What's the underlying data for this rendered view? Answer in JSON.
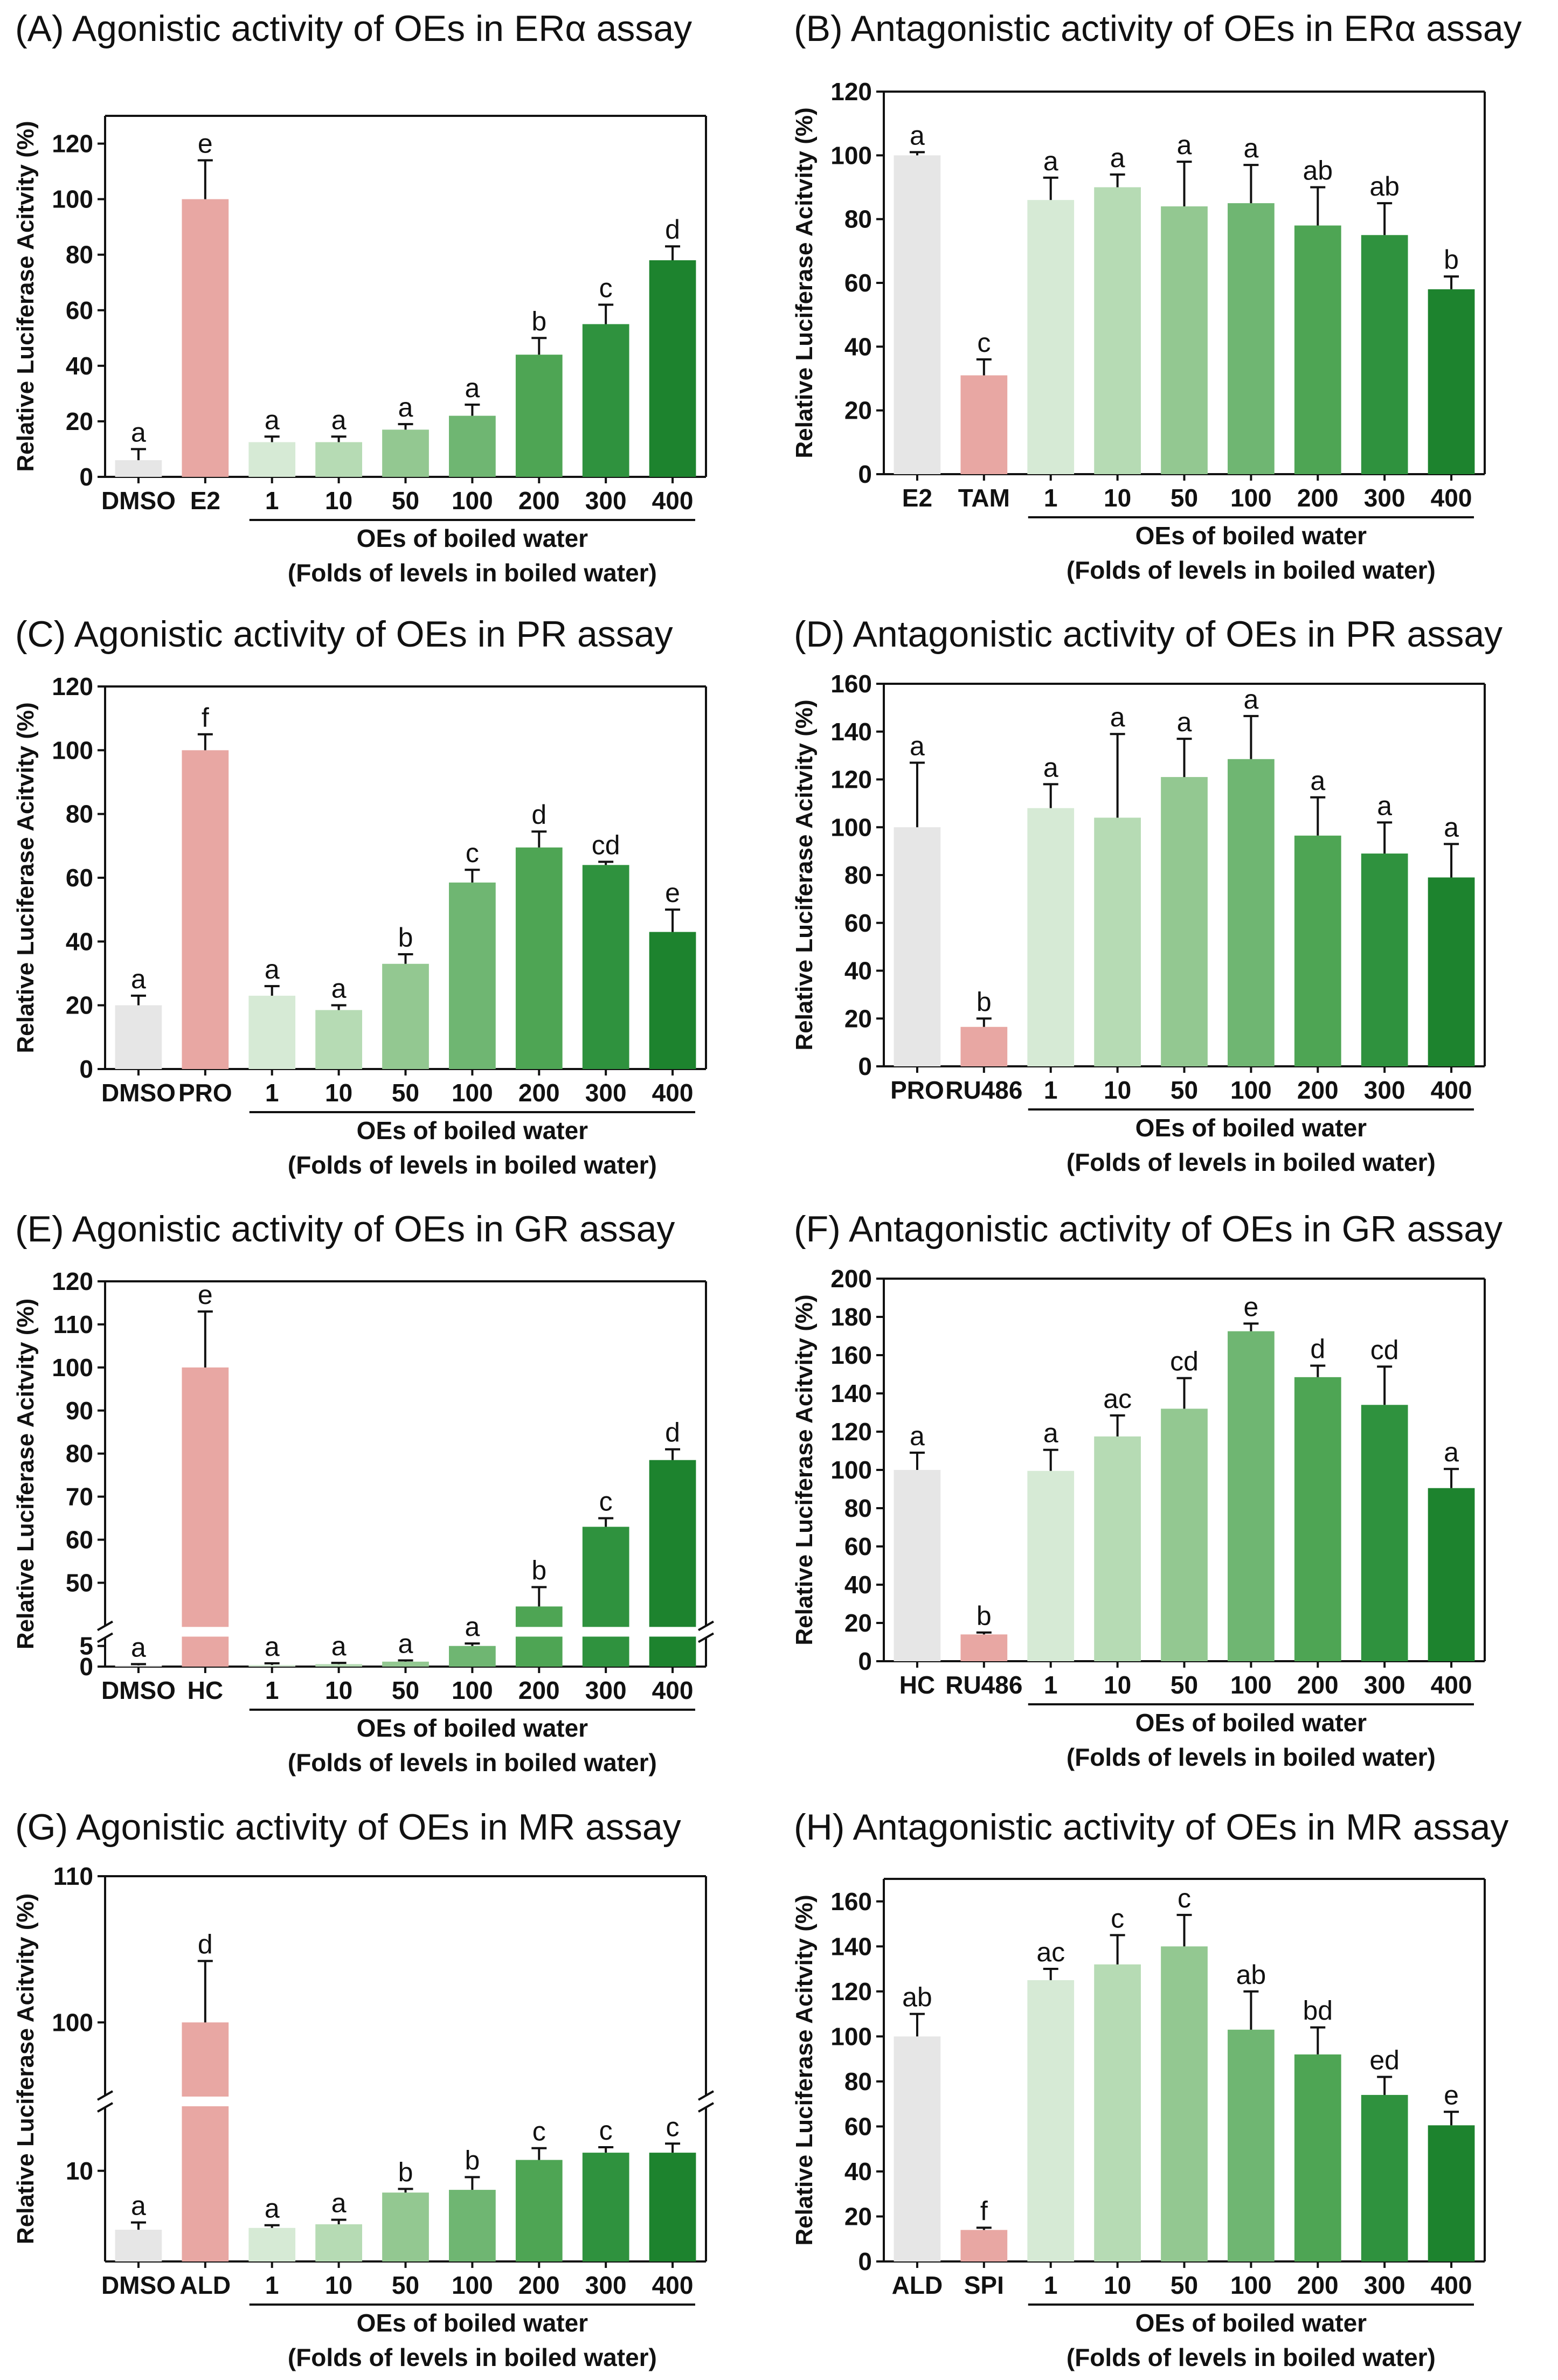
{
  "chart_data": [
    {
      "id": "A",
      "type": "bar",
      "title": "(A) Agonistic activity of OEs in ERα assay",
      "ylabel": "Relative Luciferase Acitvity (%)",
      "ylim": [
        0,
        130
      ],
      "yticks": [
        0,
        20,
        40,
        60,
        80,
        100,
        120
      ],
      "categories": [
        "DMSO",
        "E2",
        "1",
        "10",
        "50",
        "100",
        "200",
        "300",
        "400"
      ],
      "values": [
        6,
        100,
        12.5,
        12.5,
        17,
        22,
        44,
        55,
        78
      ],
      "errors": [
        4,
        14,
        2,
        2,
        2,
        4,
        6,
        7,
        5
      ],
      "letters": [
        "a",
        "e",
        "a",
        "a",
        "a",
        "a",
        "b",
        "c",
        "d"
      ],
      "colors": [
        "#e6e6e6",
        "#e8a7a3",
        "#d6ead5",
        "#b6dbb4",
        "#93c891",
        "#6fb672",
        "#4ea554",
        "#2f923e",
        "#1d832e"
      ],
      "group_label": "OEs of boiled water",
      "group_sublabel": "(Folds of levels in boiled water)"
    },
    {
      "id": "B",
      "type": "bar",
      "title": "(B) Antagonistic activity of OEs in ERα assay",
      "ylabel": "Relative Luciferase Acitvity (%)",
      "ylim": [
        0,
        120
      ],
      "yticks": [
        0,
        20,
        40,
        60,
        80,
        100,
        120
      ],
      "categories": [
        "E2",
        "TAM",
        "1",
        "10",
        "50",
        "100",
        "200",
        "300",
        "400"
      ],
      "values": [
        100,
        31,
        86,
        90,
        84,
        85,
        78,
        75,
        58
      ],
      "errors": [
        1,
        5,
        7,
        4,
        14,
        12,
        12,
        10,
        4
      ],
      "letters": [
        "a",
        "c",
        "a",
        "a",
        "a",
        "a",
        "ab",
        "ab",
        "b"
      ],
      "colors": [
        "#e6e6e6",
        "#e8a7a3",
        "#d6ead5",
        "#b6dbb4",
        "#93c891",
        "#6fb672",
        "#4ea554",
        "#2f923e",
        "#1d832e"
      ],
      "group_label": "OEs of boiled water",
      "group_sublabel": "(Folds of levels in boiled water)"
    },
    {
      "id": "C",
      "type": "bar",
      "title": "(C) Agonistic activity of OEs in PR assay",
      "ylabel": "Relative Luciferase Acitvity (%)",
      "ylim": [
        0,
        120
      ],
      "yticks": [
        0,
        20,
        40,
        60,
        80,
        100,
        120
      ],
      "categories": [
        "DMSO",
        "PRO",
        "1",
        "10",
        "50",
        "100",
        "200",
        "300",
        "400"
      ],
      "values": [
        20,
        100,
        23,
        18.5,
        33,
        58.5,
        69.5,
        64,
        43
      ],
      "errors": [
        3,
        5,
        3,
        1.5,
        3,
        4,
        5,
        1,
        7
      ],
      "letters": [
        "a",
        "f",
        "a",
        "a",
        "b",
        "c",
        "d",
        "cd",
        "e"
      ],
      "colors": [
        "#e6e6e6",
        "#e8a7a3",
        "#d6ead5",
        "#b6dbb4",
        "#93c891",
        "#6fb672",
        "#4ea554",
        "#2f923e",
        "#1d832e"
      ],
      "group_label": "OEs of boiled water",
      "group_sublabel": "(Folds of levels in boiled water)"
    },
    {
      "id": "D",
      "type": "bar",
      "title": "(D) Antagonistic activity of OEs in PR assay",
      "ylabel": "Relative Luciferase Acitvity (%)",
      "ylim": [
        0,
        160
      ],
      "yticks": [
        0,
        20,
        40,
        60,
        80,
        100,
        120,
        140,
        160
      ],
      "categories": [
        "PRO",
        "RU486",
        "1",
        "10",
        "50",
        "100",
        "200",
        "300",
        "400"
      ],
      "values": [
        100,
        16.5,
        108,
        104,
        121,
        128.5,
        96.5,
        89,
        79
      ],
      "errors": [
        27,
        3.5,
        10,
        35,
        16,
        18,
        16,
        13,
        14
      ],
      "letters": [
        "a",
        "b",
        "a",
        "a",
        "a",
        "a",
        "a",
        "a",
        "a"
      ],
      "colors": [
        "#e6e6e6",
        "#e8a7a3",
        "#d6ead5",
        "#b6dbb4",
        "#93c891",
        "#6fb672",
        "#4ea554",
        "#2f923e",
        "#1d832e"
      ],
      "group_label": "OEs of boiled water",
      "group_sublabel": "(Folds of levels in boiled water)"
    },
    {
      "id": "E",
      "type": "bar",
      "title": "(E) Agonistic activity of OEs in GR assay",
      "ylabel": "Relative Luciferase Acitvity (%)",
      "broken_axis": {
        "lower": [
          0,
          7
        ],
        "upper": [
          40,
          120
        ]
      },
      "yticks_lower": [
        0,
        5
      ],
      "yticks_upper": [
        50,
        60,
        70,
        80,
        90,
        100,
        110,
        120
      ],
      "categories": [
        "DMSO",
        "HC",
        "1",
        "10",
        "50",
        "100",
        "200",
        "300",
        "400"
      ],
      "values": [
        0.3,
        100,
        0.4,
        0.6,
        1.2,
        5,
        44.5,
        63,
        78.5
      ],
      "errors": [
        0.3,
        13,
        0.4,
        0.3,
        0.3,
        0.6,
        4.5,
        2,
        2.5
      ],
      "letters": [
        "a",
        "e",
        "a",
        "a",
        "a",
        "a",
        "b",
        "c",
        "d"
      ],
      "colors": [
        "#e6e6e6",
        "#e8a7a3",
        "#d6ead5",
        "#b6dbb4",
        "#93c891",
        "#6fb672",
        "#4ea554",
        "#2f923e",
        "#1d832e"
      ],
      "group_label": "OEs of boiled water",
      "group_sublabel": "(Folds of levels in boiled water)"
    },
    {
      "id": "F",
      "type": "bar",
      "title": "(F) Antagonistic activity of OEs in GR assay",
      "ylabel": "Relative Luciferase Acitvity (%)",
      "ylim": [
        0,
        200
      ],
      "yticks": [
        0,
        20,
        40,
        60,
        80,
        100,
        120,
        140,
        160,
        180,
        200
      ],
      "categories": [
        "HC",
        "RU486",
        "1",
        "10",
        "50",
        "100",
        "200",
        "300",
        "400"
      ],
      "values": [
        100,
        14,
        99.5,
        117.5,
        132,
        172.5,
        148.5,
        134,
        90.5
      ],
      "errors": [
        9,
        1,
        11,
        11,
        16,
        4,
        6,
        20,
        10
      ],
      "letters": [
        "a",
        "b",
        "a",
        "ac",
        "cd",
        "e",
        "d",
        "cd",
        "a"
      ],
      "colors": [
        "#e6e6e6",
        "#e8a7a3",
        "#d6ead5",
        "#b6dbb4",
        "#93c891",
        "#6fb672",
        "#4ea554",
        "#2f923e",
        "#1d832e"
      ],
      "group_label": "OEs of boiled water",
      "group_sublabel": "(Folds of levels in boiled water)"
    },
    {
      "id": "G",
      "type": "bar",
      "title": "(G) Agonistic activity of OEs in MR assay",
      "ylabel": "Relative Luciferase Acitvity (%)",
      "broken_axis": {
        "lower": [
          0,
          17
        ],
        "upper": [
          95,
          110
        ]
      },
      "yticks_lower": [
        10
      ],
      "yticks_upper": [
        100,
        110
      ],
      "categories": [
        "DMSO",
        "ALD",
        "1",
        "10",
        "50",
        "100",
        "200",
        "300",
        "400"
      ],
      "values": [
        3.5,
        100,
        3.7,
        4.1,
        7.6,
        7.9,
        11.2,
        12,
        12
      ],
      "errors": [
        0.8,
        4.2,
        0.3,
        0.5,
        0.4,
        1.4,
        1.3,
        0.6,
        1
      ],
      "letters": [
        "a",
        "d",
        "a",
        "a",
        "b",
        "b",
        "c",
        "c",
        "c"
      ],
      "colors": [
        "#e6e6e6",
        "#e8a7a3",
        "#d6ead5",
        "#b6dbb4",
        "#93c891",
        "#6fb672",
        "#4ea554",
        "#2f923e",
        "#1d832e"
      ],
      "group_label": "OEs of boiled water",
      "group_sublabel": "(Folds of levels in boiled water)"
    },
    {
      "id": "H",
      "type": "bar",
      "title": "(H) Antagonistic activity of OEs in MR assay",
      "ylabel": "Relative Luciferase Acitvity (%)",
      "ylim": [
        0,
        170
      ],
      "yticks": [
        0,
        20,
        40,
        60,
        80,
        100,
        120,
        140,
        160
      ],
      "categories": [
        "ALD",
        "SPI",
        "1",
        "10",
        "50",
        "100",
        "200",
        "300",
        "400"
      ],
      "values": [
        100,
        14,
        125,
        132,
        140,
        103,
        92,
        74,
        60.5
      ],
      "errors": [
        10,
        1,
        5,
        13,
        14,
        17,
        12,
        8,
        6
      ],
      "letters": [
        "ab",
        "f",
        "ac",
        "c",
        "c",
        "ab",
        "bd",
        "ed",
        "e"
      ],
      "colors": [
        "#e6e6e6",
        "#e8a7a3",
        "#d6ead5",
        "#b6dbb4",
        "#93c891",
        "#6fb672",
        "#4ea554",
        "#2f923e",
        "#1d832e"
      ],
      "group_label": "OEs of boiled water",
      "group_sublabel": "(Folds of levels in boiled water)"
    }
  ]
}
